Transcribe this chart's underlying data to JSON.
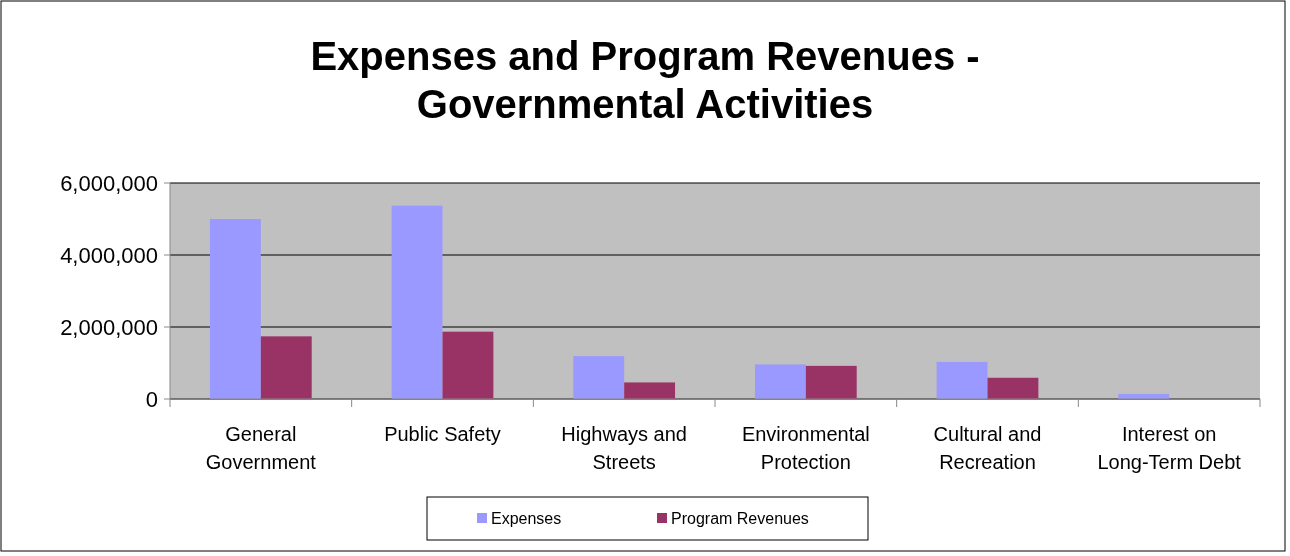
{
  "chart_data": {
    "type": "bar",
    "title": "Expenses and Program Revenues - Governmental Activities",
    "categories": [
      "General Government",
      "Public Safety",
      "Highways and Streets",
      "Environmental Protection",
      "Cultural and Recreation",
      "Interest on Long-Term Debt"
    ],
    "series": [
      {
        "name": "Expenses",
        "color": "#9999ff",
        "values": [
          5000000,
          5370000,
          1190000,
          960000,
          1030000,
          140000
        ]
      },
      {
        "name": "Program Revenues",
        "color": "#993366",
        "values": [
          1740000,
          1870000,
          460000,
          920000,
          590000,
          0
        ]
      }
    ],
    "ylim": [
      0,
      6000000
    ],
    "yticks": [
      {
        "value": 0,
        "label": "0"
      },
      {
        "value": 2000000,
        "label": "2,000,000"
      },
      {
        "value": 4000000,
        "label": "4,000,000"
      },
      {
        "value": 6000000,
        "label": "6,000,000"
      }
    ],
    "grid": "y",
    "legend": "bottom"
  }
}
